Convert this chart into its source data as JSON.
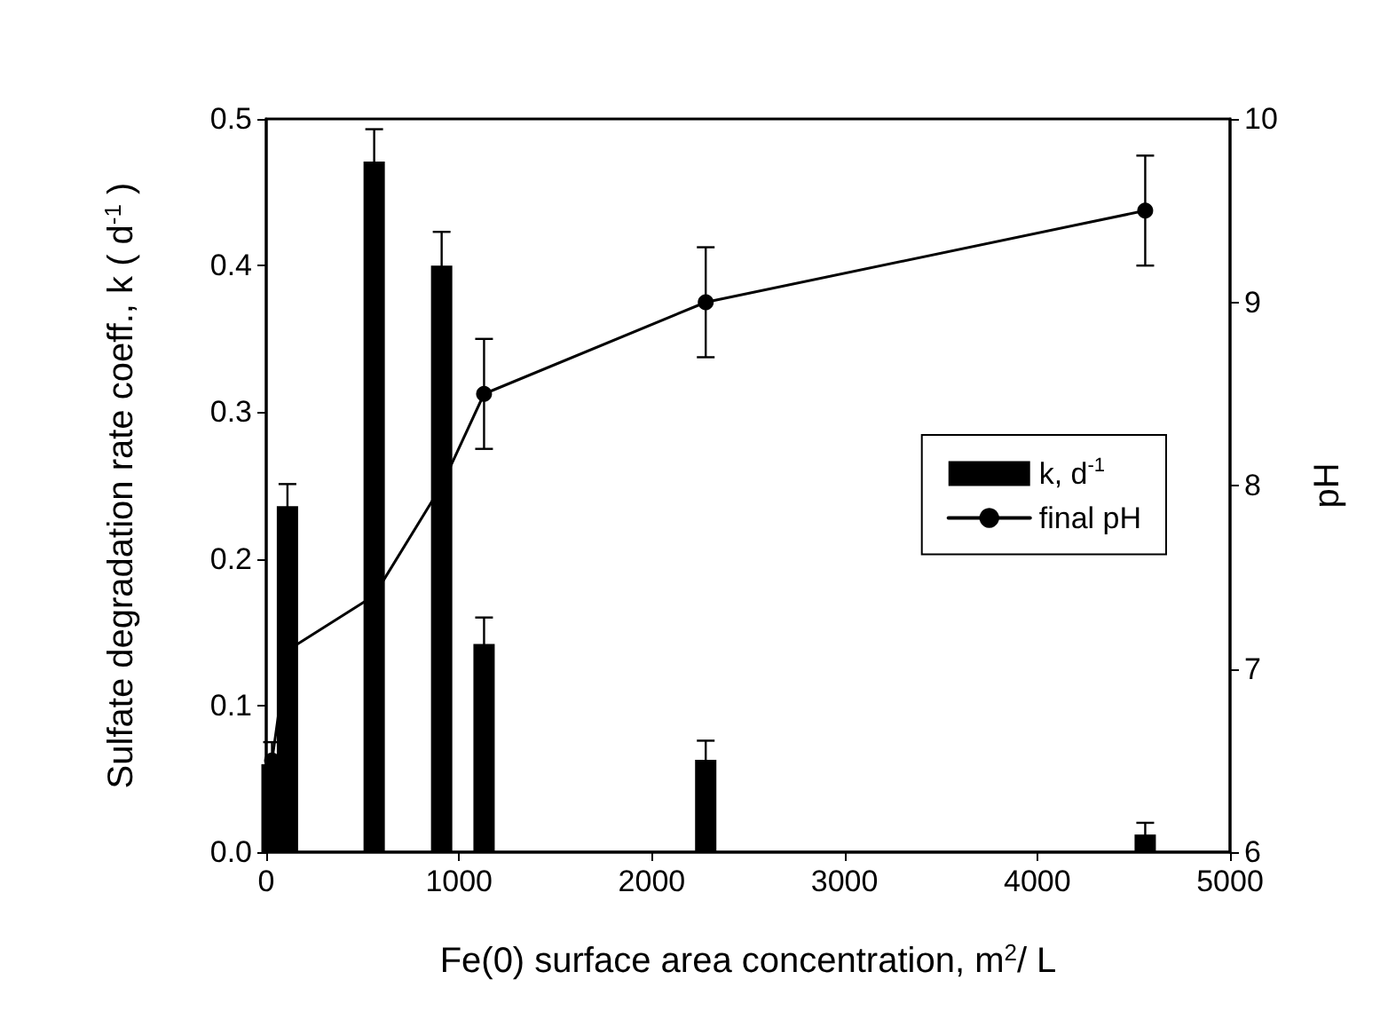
{
  "chart_data": {
    "type": "bar",
    "xlabel": "Fe(0) surface area concentration, m$^{2}$/ L",
    "ylabel": "Sulfate degradation rate coeff., k ( d$^{-1}$ )",
    "y2label": "pH",
    "x": [
      30,
      110,
      560,
      910,
      1130,
      2280,
      4560
    ],
    "series": [
      {
        "name": "k, d$^{-1}$",
        "color": "#000000",
        "values": [
          0.06,
          0.236,
          0.471,
          0.4,
          0.142,
          0.063,
          0.012
        ],
        "errors": [
          null,
          0.015,
          0.022,
          0.023,
          0.018,
          0.013,
          0.008
        ]
      },
      {
        "name": "final pH",
        "type": "line",
        "axis": "y2",
        "color": "#000000",
        "values": [
          6.5,
          7.1,
          7.4,
          8.0,
          8.5,
          9.0,
          9.5
        ],
        "errors": [
          0.1,
          null,
          null,
          null,
          0.3,
          0.3,
          0.3
        ]
      }
    ],
    "xlim": [
      0,
      5000
    ],
    "xticks": [
      0,
      1000,
      2000,
      3000,
      4000,
      5000
    ],
    "ylim": [
      0,
      0.5
    ],
    "yticks": [
      {
        "value": 0,
        "label": "0.0"
      },
      0.1,
      0.2,
      0.3,
      0.4,
      0.5
    ],
    "y2lim": [
      6,
      10
    ],
    "y2ticks": [
      6,
      7,
      8,
      9,
      10
    ],
    "grid": false,
    "legend": "right",
    "marker": "circle",
    "line_style": "solid"
  }
}
